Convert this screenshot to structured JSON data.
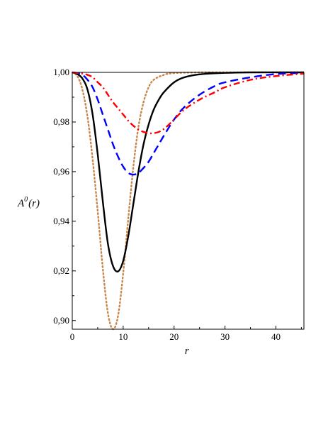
{
  "chart_data": {
    "type": "line",
    "title": "",
    "xlabel": "r",
    "ylabel": {
      "base": "A",
      "superscript": "0",
      "arg": "(r)"
    },
    "xlim": [
      0,
      45.5
    ],
    "ylim": [
      0.8965,
      1.0
    ],
    "xticks": [
      0,
      10,
      20,
      30,
      40
    ],
    "xtick_labels": [
      "0",
      "10",
      "20",
      "30",
      "40"
    ],
    "yticks": [
      0.9,
      0.92,
      0.94,
      0.96,
      0.98,
      1.0
    ],
    "ytick_labels": [
      "0,90",
      "0,92",
      "0,94",
      "0,96",
      "0,98",
      "1,00"
    ],
    "grid": false,
    "legend": "none",
    "series": [
      {
        "color": "#c8864a",
        "style": "dotted",
        "points": [
          [
            0,
            1.0
          ],
          [
            1,
            0.9985
          ],
          [
            2,
            0.993
          ],
          [
            3,
            0.982
          ],
          [
            4,
            0.965
          ],
          [
            5,
            0.944
          ],
          [
            6,
            0.921
          ],
          [
            7,
            0.903
          ],
          [
            8,
            0.8965
          ],
          [
            9,
            0.902
          ],
          [
            10,
            0.919
          ],
          [
            11,
            0.941
          ],
          [
            12,
            0.962
          ],
          [
            13,
            0.978
          ],
          [
            14,
            0.988
          ],
          [
            15,
            0.994
          ],
          [
            16,
            0.997
          ],
          [
            18,
            0.999
          ],
          [
            20,
            0.9997
          ],
          [
            25,
            1.0
          ],
          [
            30,
            1.0
          ],
          [
            45.5,
            1.0
          ]
        ]
      },
      {
        "color": "#000000",
        "style": "solid",
        "points": [
          [
            0,
            1.0
          ],
          [
            1,
            0.9993
          ],
          [
            2,
            0.9975
          ],
          [
            3,
            0.993
          ],
          [
            4,
            0.983
          ],
          [
            5,
            0.967
          ],
          [
            6,
            0.948
          ],
          [
            7,
            0.931
          ],
          [
            8,
            0.922
          ],
          [
            9,
            0.9198
          ],
          [
            10,
            0.924
          ],
          [
            11,
            0.934
          ],
          [
            12,
            0.947
          ],
          [
            13,
            0.96
          ],
          [
            14,
            0.971
          ],
          [
            15,
            0.979
          ],
          [
            16,
            0.985
          ],
          [
            17,
            0.989
          ],
          [
            18,
            0.992
          ],
          [
            20,
            0.996
          ],
          [
            22,
            0.998
          ],
          [
            25,
            0.9992
          ],
          [
            30,
            0.9998
          ],
          [
            35,
            1.0
          ],
          [
            45.5,
            1.0
          ]
        ]
      },
      {
        "color": "#0000ff",
        "style": "dashed",
        "points": [
          [
            0,
            1.0
          ],
          [
            1,
            0.9997
          ],
          [
            2,
            0.999
          ],
          [
            3,
            0.997
          ],
          [
            4,
            0.994
          ],
          [
            5,
            0.989
          ],
          [
            6,
            0.983
          ],
          [
            7,
            0.977
          ],
          [
            8,
            0.971
          ],
          [
            9,
            0.966
          ],
          [
            10,
            0.962
          ],
          [
            11,
            0.9595
          ],
          [
            12,
            0.9588
          ],
          [
            13,
            0.9595
          ],
          [
            14,
            0.9615
          ],
          [
            15,
            0.964
          ],
          [
            16,
            0.9675
          ],
          [
            17,
            0.971
          ],
          [
            18,
            0.9745
          ],
          [
            20,
            0.981
          ],
          [
            22,
            0.986
          ],
          [
            25,
            0.991
          ],
          [
            28,
            0.9945
          ],
          [
            30,
            0.996
          ],
          [
            35,
            0.998
          ],
          [
            40,
            0.9993
          ],
          [
            45.5,
            0.9998
          ]
        ]
      },
      {
        "color": "#ff0000",
        "style": "dashdot",
        "points": [
          [
            0,
            1.0
          ],
          [
            1,
            0.9998
          ],
          [
            2,
            0.9995
          ],
          [
            3,
            0.999
          ],
          [
            4,
            0.998
          ],
          [
            5,
            0.996
          ],
          [
            6,
            0.994
          ],
          [
            7,
            0.991
          ],
          [
            8,
            0.988
          ],
          [
            9,
            0.9855
          ],
          [
            10,
            0.983
          ],
          [
            11,
            0.9805
          ],
          [
            12,
            0.9785
          ],
          [
            13,
            0.977
          ],
          [
            14,
            0.976
          ],
          [
            15,
            0.9755
          ],
          [
            16,
            0.9755
          ],
          [
            17,
            0.976
          ],
          [
            18,
            0.9772
          ],
          [
            19,
            0.979
          ],
          [
            20,
            0.981
          ],
          [
            22,
            0.985
          ],
          [
            25,
            0.989
          ],
          [
            28,
            0.992
          ],
          [
            30,
            0.994
          ],
          [
            35,
            0.997
          ],
          [
            40,
            0.9985
          ],
          [
            45.5,
            0.9995
          ]
        ]
      }
    ]
  }
}
